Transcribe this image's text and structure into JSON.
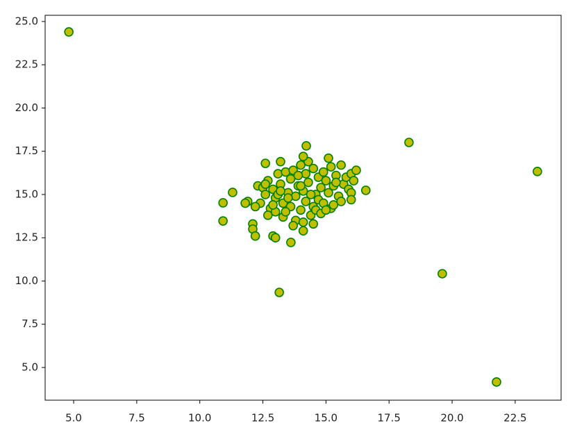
{
  "chart_data": {
    "type": "scatter",
    "x": [
      12.3,
      12.5,
      12.4,
      12.2,
      12.6,
      12.7,
      12.8,
      12.7,
      12.9,
      13.0,
      13.1,
      13.2,
      13.0,
      13.3,
      13.4,
      13.5,
      13.3,
      13.6,
      13.7,
      13.6,
      13.8,
      13.9,
      13.8,
      14.0,
      14.1,
      14.0,
      14.2,
      14.3,
      14.2,
      14.4,
      14.5,
      14.6,
      14.5,
      14.7,
      14.8,
      14.7,
      14.9,
      15.0,
      14.9,
      15.1,
      15.2,
      15.3,
      15.2,
      15.4,
      15.5,
      15.6,
      15.7,
      15.8,
      15.9,
      16.0,
      16.1,
      15.6,
      15.3,
      14.4,
      13.9,
      13.5,
      13.1,
      12.9,
      14.6,
      14.1,
      13.7,
      13.4,
      14.8,
      15.0,
      12.6,
      13.2,
      14.3,
      15.4,
      16.0,
      14.0,
      12.1,
      12.1,
      12.2,
      12.6,
      13.2,
      14.1,
      15.1,
      12.9,
      13.0,
      11.9,
      11.8,
      16.2,
      16.0,
      14.1,
      14.5,
      4.81,
      18.29,
      23.38,
      19.61,
      21.76,
      13.15,
      10.92,
      10.92,
      11.3,
      13.61,
      16.58,
      14.22
    ],
    "values": [
      15.5,
      15.4,
      14.5,
      14.3,
      15.0,
      15.8,
      14.2,
      13.8,
      15.3,
      14.8,
      16.2,
      15.6,
      14.0,
      13.7,
      16.3,
      15.1,
      14.5,
      15.9,
      16.4,
      14.3,
      13.5,
      15.5,
      14.9,
      16.7,
      15.2,
      14.1,
      16.2,
      15.7,
      14.6,
      13.8,
      16.5,
      15.0,
      14.3,
      16.0,
      15.4,
      14.7,
      16.3,
      15.8,
      14.5,
      15.1,
      16.6,
      15.5,
      14.2,
      16.1,
      14.9,
      16.7,
      15.6,
      16.0,
      15.3,
      16.2,
      15.8,
      14.6,
      14.4,
      15.0,
      16.1,
      14.8,
      15.0,
      14.4,
      14.1,
      13.4,
      13.2,
      14.0,
      13.9,
      14.1,
      15.6,
      15.2,
      16.9,
      15.7,
      15.1,
      15.5,
      13.3,
      13.0,
      12.6,
      16.8,
      16.9,
      17.2,
      17.1,
      12.6,
      12.5,
      14.6,
      14.5,
      16.4,
      14.7,
      12.9,
      13.3,
      24.4,
      18.01,
      16.33,
      10.42,
      4.16,
      9.34,
      14.52,
      13.47,
      15.12,
      12.23,
      15.24,
      17.81
    ],
    "color": "#bfbf00",
    "edgecolor": "#008000",
    "xlim": [
      3.87,
      24.32
    ],
    "xticks": [
      {
        "value": 5,
        "label": "5.0"
      },
      7.5,
      {
        "value": 10,
        "label": "10.0"
      },
      12.5,
      {
        "value": 15,
        "label": "15.0"
      },
      17.5,
      {
        "value": 20,
        "label": "20.0"
      },
      22.5
    ],
    "ylim": [
      3.11,
      25.36
    ],
    "yticks": [
      {
        "value": 5,
        "label": "5.0"
      },
      7.5,
      {
        "value": 10,
        "label": "10.0"
      },
      12.5,
      {
        "value": 15,
        "label": "15.0"
      },
      17.5,
      {
        "value": 20,
        "label": "20.0"
      },
      22.5,
      {
        "value": 25,
        "label": "25.0"
      }
    ],
    "grid": false
  }
}
